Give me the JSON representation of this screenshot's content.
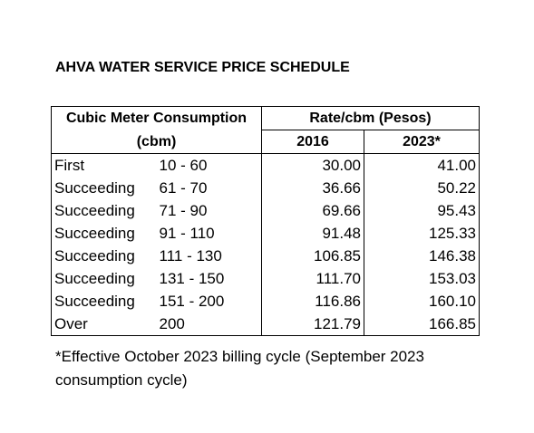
{
  "title": "AHVA WATER SERVICE PRICE SCHEDULE",
  "table": {
    "header": {
      "consumption_line1": "Cubic Meter Consumption",
      "consumption_line2": "(cbm)",
      "rate": "Rate/cbm (Pesos)",
      "year1": "2016",
      "year2": "2023*"
    },
    "rows": [
      {
        "tier": "First",
        "range": "10 - 60",
        "rate_2016": "30.00",
        "rate_2023": "41.00"
      },
      {
        "tier": "Succeeding",
        "range": "61 - 70",
        "rate_2016": "36.66",
        "rate_2023": "50.22"
      },
      {
        "tier": "Succeeding",
        "range": "71 - 90",
        "rate_2016": "69.66",
        "rate_2023": "95.43"
      },
      {
        "tier": "Succeeding",
        "range": "91 - 110",
        "rate_2016": "91.48",
        "rate_2023": "125.33"
      },
      {
        "tier": "Succeeding",
        "range": "111 - 130",
        "rate_2016": "106.85",
        "rate_2023": "146.38"
      },
      {
        "tier": "Succeeding",
        "range": "131 - 150",
        "rate_2016": "111.70",
        "rate_2023": "153.03"
      },
      {
        "tier": "Succeeding",
        "range": "151 - 200",
        "rate_2016": "116.86",
        "rate_2023": "160.10"
      },
      {
        "tier": "Over",
        "range": "200",
        "rate_2016": "121.79",
        "rate_2023": "166.85"
      }
    ]
  },
  "footnote": "*Effective October 2023 billing cycle (September 2023 consumption cycle)"
}
